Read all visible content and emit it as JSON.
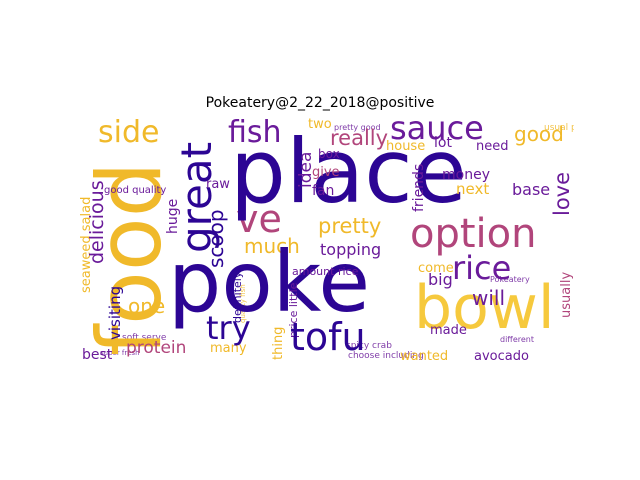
{
  "title": "Pokeatery@2_22_2018@positive",
  "colors": {
    "indigo": "#2c0594",
    "purple": "#6a1b9a",
    "magenta": "#b1457b",
    "gold": "#f0b92a",
    "light_gold": "#f6c93d"
  },
  "words": [
    {
      "text": "place",
      "color": "indigo"
    },
    {
      "text": "poke",
      "color": "indigo"
    },
    {
      "text": "food",
      "color": "gold"
    },
    {
      "text": "bowl",
      "color": "gold"
    },
    {
      "text": "option",
      "color": "magenta"
    },
    {
      "text": "sauce",
      "color": "purple"
    },
    {
      "text": "great",
      "color": "indigo"
    },
    {
      "text": "tofu",
      "color": "indigo"
    },
    {
      "text": "rice",
      "color": "purple"
    },
    {
      "text": "try",
      "color": "indigo"
    },
    {
      "text": "fish",
      "color": "purple"
    },
    {
      "text": "side",
      "color": "gold"
    },
    {
      "text": "ve",
      "color": "magenta"
    },
    {
      "text": "good",
      "color": "gold"
    },
    {
      "text": "really",
      "color": "purple"
    },
    {
      "text": "pretty",
      "color": "gold"
    },
    {
      "text": "love",
      "color": "magenta"
    },
    {
      "text": "one",
      "color": "gold"
    },
    {
      "text": "will",
      "color": "purple"
    },
    {
      "text": "delicious",
      "color": "purple"
    },
    {
      "text": "scoop",
      "color": "indigo"
    },
    {
      "text": "idea",
      "color": "purple"
    },
    {
      "text": "much",
      "color": "gold"
    },
    {
      "text": "protein",
      "color": "magenta"
    },
    {
      "text": "many",
      "color": "gold"
    },
    {
      "text": "topping",
      "color": "purple"
    },
    {
      "text": "avocado",
      "color": "purple"
    },
    {
      "text": "best",
      "color": "purple"
    },
    {
      "text": "friends",
      "color": "purple"
    },
    {
      "text": "money",
      "color": "purple"
    },
    {
      "text": "next",
      "color": "gold"
    },
    {
      "text": "base",
      "color": "purple"
    },
    {
      "text": "big",
      "color": "purple"
    },
    {
      "text": "made",
      "color": "purple"
    },
    {
      "text": "come",
      "color": "gold"
    },
    {
      "text": "wanted",
      "color": "gold"
    },
    {
      "text": "usually",
      "color": "magenta"
    },
    {
      "text": "fan",
      "color": "purple"
    },
    {
      "text": "box",
      "color": "purple"
    },
    {
      "text": "give",
      "color": "magenta"
    },
    {
      "text": "lot",
      "color": "purple"
    },
    {
      "text": "need",
      "color": "purple"
    },
    {
      "text": "house",
      "color": "gold"
    },
    {
      "text": "two",
      "color": "gold"
    },
    {
      "text": "raw",
      "color": "purple"
    },
    {
      "text": "huge",
      "color": "purple"
    },
    {
      "text": "definitely",
      "color": "indigo"
    },
    {
      "text": "thing",
      "color": "gold"
    },
    {
      "text": "price little",
      "color": "purple"
    },
    {
      "text": "amount rice",
      "color": "purple"
    },
    {
      "text": "good quality",
      "color": "purple"
    },
    {
      "text": "soft serve",
      "color": "purple"
    },
    {
      "text": "spicy crab",
      "color": "purple"
    },
    {
      "text": "pretty good",
      "color": "purple"
    },
    {
      "text": "seaweed salad",
      "color": "gold"
    },
    {
      "text": "choose including",
      "color": "purple"
    },
    {
      "text": "visiting",
      "color": "indigo"
    },
    {
      "text": "usual poke",
      "color": "gold"
    },
    {
      "text": "quality fish",
      "color": "gold"
    },
    {
      "text": "different",
      "color": "purple"
    },
    {
      "text": "Pokeatery",
      "color": "purple"
    },
    {
      "text": "super fresh",
      "color": "purple"
    }
  ]
}
